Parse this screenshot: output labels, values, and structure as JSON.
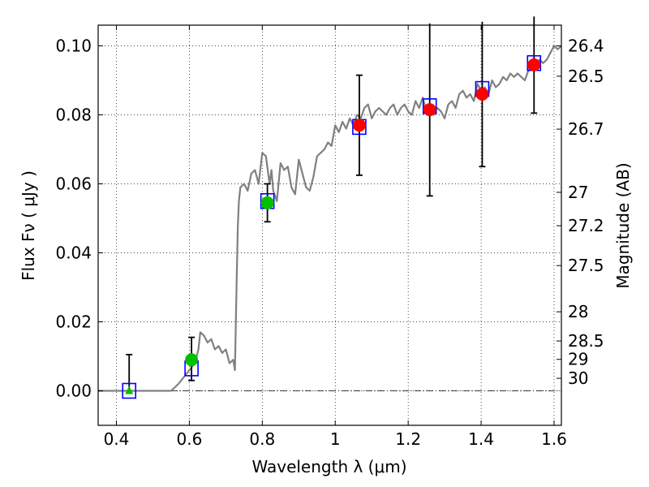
{
  "chart_data": {
    "type": "scatter",
    "xlabel": "Wavelength  λ (μm)",
    "ylabel": "Flux  Fν  ( μJy )",
    "y2label": "Magnitude (AB)",
    "xlim": [
      0.35,
      1.62
    ],
    "ylim": [
      -0.01,
      0.106
    ],
    "grid": true,
    "x_ticks": [
      0.4,
      0.6,
      0.8,
      1.0,
      1.2,
      1.4,
      1.6
    ],
    "x_tick_labels": [
      "0.4",
      "0.6",
      "0.8",
      "1",
      "1.2",
      "1.4",
      "1.6"
    ],
    "y_ticks": [
      0.0,
      0.02,
      0.04,
      0.06,
      0.08,
      0.1
    ],
    "y_tick_labels": [
      "0.00",
      "0.02",
      "0.04",
      "0.06",
      "0.08",
      "0.10"
    ],
    "mag_ticks": [
      26.4,
      26.5,
      26.7,
      27,
      27.2,
      27.5,
      28,
      28.5,
      29,
      30
    ],
    "mag_tick_labels": [
      "26.4",
      "26.5",
      "26.7",
      "27",
      "27.2",
      "27.5",
      "28",
      "28.5",
      "29",
      "30"
    ],
    "zero_line": 0.0,
    "colors": {
      "model": "#808080",
      "model_photometry": "#0000ff",
      "green_points": "#00c000",
      "red_points": "#ff0000",
      "errorbar": "#000000"
    },
    "model_spectrum": {
      "x": [
        0.35,
        0.42,
        0.5,
        0.55,
        0.57,
        0.585,
        0.6,
        0.615,
        0.625,
        0.63,
        0.64,
        0.65,
        0.66,
        0.67,
        0.68,
        0.69,
        0.7,
        0.71,
        0.72,
        0.725,
        0.73,
        0.733,
        0.736,
        0.74,
        0.75,
        0.76,
        0.77,
        0.78,
        0.79,
        0.8,
        0.81,
        0.82,
        0.825,
        0.83,
        0.84,
        0.85,
        0.86,
        0.87,
        0.88,
        0.89,
        0.9,
        0.91,
        0.92,
        0.93,
        0.94,
        0.95,
        0.96,
        0.97,
        0.98,
        0.99,
        1.0,
        1.01,
        1.02,
        1.03,
        1.04,
        1.05,
        1.06,
        1.07,
        1.08,
        1.09,
        1.1,
        1.11,
        1.12,
        1.13,
        1.14,
        1.15,
        1.16,
        1.17,
        1.18,
        1.19,
        1.2,
        1.21,
        1.22,
        1.23,
        1.24,
        1.25,
        1.26,
        1.27,
        1.28,
        1.29,
        1.3,
        1.31,
        1.32,
        1.33,
        1.34,
        1.35,
        1.36,
        1.37,
        1.38,
        1.39,
        1.4,
        1.41,
        1.42,
        1.43,
        1.44,
        1.45,
        1.46,
        1.47,
        1.48,
        1.49,
        1.5,
        1.51,
        1.52,
        1.53,
        1.54,
        1.55,
        1.56,
        1.57,
        1.58,
        1.59,
        1.6,
        1.61,
        1.62
      ],
      "y": [
        0.0,
        0.0,
        0.0,
        0.0,
        0.002,
        0.004,
        0.006,
        0.008,
        0.012,
        0.017,
        0.016,
        0.014,
        0.015,
        0.012,
        0.013,
        0.011,
        0.012,
        0.008,
        0.009,
        0.006,
        0.034,
        0.048,
        0.055,
        0.059,
        0.06,
        0.058,
        0.063,
        0.064,
        0.06,
        0.069,
        0.068,
        0.06,
        0.064,
        0.058,
        0.055,
        0.066,
        0.064,
        0.065,
        0.059,
        0.057,
        0.067,
        0.063,
        0.059,
        0.058,
        0.062,
        0.068,
        0.069,
        0.07,
        0.072,
        0.071,
        0.077,
        0.075,
        0.078,
        0.076,
        0.079,
        0.077,
        0.08,
        0.079,
        0.082,
        0.083,
        0.079,
        0.081,
        0.082,
        0.081,
        0.08,
        0.082,
        0.083,
        0.08,
        0.082,
        0.083,
        0.081,
        0.08,
        0.084,
        0.082,
        0.085,
        0.081,
        0.083,
        0.08,
        0.082,
        0.081,
        0.079,
        0.083,
        0.084,
        0.082,
        0.086,
        0.087,
        0.085,
        0.086,
        0.084,
        0.089,
        0.087,
        0.088,
        0.086,
        0.09,
        0.088,
        0.089,
        0.091,
        0.09,
        0.092,
        0.091,
        0.092,
        0.091,
        0.09,
        0.093,
        0.095,
        0.094,
        0.096,
        0.095,
        0.096,
        0.098,
        0.1,
        0.099,
        0.1
      ]
    },
    "model_photometry": [
      {
        "x": 0.435,
        "y": 0.0
      },
      {
        "x": 0.606,
        "y": 0.0065
      },
      {
        "x": 0.814,
        "y": 0.055
      },
      {
        "x": 1.066,
        "y": 0.0765
      },
      {
        "x": 1.259,
        "y": 0.0825
      },
      {
        "x": 1.403,
        "y": 0.0875
      },
      {
        "x": 1.545,
        "y": 0.095
      }
    ],
    "series": [
      {
        "marker": "triangle",
        "color": "green",
        "points": [
          {
            "x": 0.435,
            "y": 0.0,
            "err_low": 0.0,
            "err_high": 0.0105
          }
        ]
      },
      {
        "marker": "circle",
        "color": "green",
        "points": [
          {
            "x": 0.606,
            "y": 0.009,
            "err_low": 0.006,
            "err_high": 0.0065
          },
          {
            "x": 0.814,
            "y": 0.0545,
            "err_low": 0.0055,
            "err_high": 0.0055
          }
        ]
      },
      {
        "marker": "circle",
        "color": "red",
        "points": [
          {
            "x": 1.066,
            "y": 0.077,
            "err_low": 0.0145,
            "err_high": 0.0145
          },
          {
            "x": 1.259,
            "y": 0.0815,
            "err_low": 0.025,
            "err_high": 0.025
          },
          {
            "x": 1.403,
            "y": 0.086,
            "err_low": 0.021,
            "err_high": 0.021
          },
          {
            "x": 1.545,
            "y": 0.0945,
            "err_low": 0.014,
            "err_high": 0.014
          }
        ]
      }
    ]
  }
}
